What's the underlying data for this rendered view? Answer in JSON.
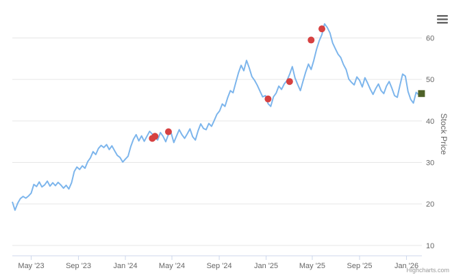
{
  "menu": {
    "icon": "hamburger-menu-icon"
  },
  "credit": "Highcharts.com",
  "colors": {
    "line": "#7cb5ec",
    "marker": "#d64141",
    "last_marker": "#4f6228",
    "grid": "#e6e6e6",
    "axis_text": "#666666"
  },
  "chart_data": {
    "type": "line",
    "ylabel": "Stock Price",
    "y_axis_side": "right",
    "ylim": [
      7.5,
      67.5
    ],
    "yticks": [
      10,
      20,
      30,
      40,
      50,
      60
    ],
    "xlim": [
      "2023-03-13",
      "2026-02-10"
    ],
    "xticks": [
      {
        "date": "2023-05-01",
        "label": "May '23"
      },
      {
        "date": "2023-09-01",
        "label": "Sep '23"
      },
      {
        "date": "2024-01-01",
        "label": "Jan '24"
      },
      {
        "date": "2024-05-01",
        "label": "May '24"
      },
      {
        "date": "2024-09-01",
        "label": "Sep '24"
      },
      {
        "date": "2025-01-01",
        "label": "Jan '25"
      },
      {
        "date": "2025-05-01",
        "label": "May '25"
      },
      {
        "date": "2025-09-01",
        "label": "Sep '25"
      },
      {
        "date": "2026-01-01",
        "label": "Jan '26"
      }
    ],
    "grid": true,
    "series": [
      {
        "x": [
          "2023-03-13",
          "2023-03-20",
          "2023-03-27",
          "2023-04-03",
          "2023-04-10",
          "2023-04-17",
          "2023-04-24",
          "2023-05-01",
          "2023-05-08",
          "2023-05-15",
          "2023-05-22",
          "2023-05-29",
          "2023-06-05",
          "2023-06-12",
          "2023-06-19",
          "2023-06-26",
          "2023-07-03",
          "2023-07-10",
          "2023-07-17",
          "2023-07-24",
          "2023-07-31",
          "2023-08-07",
          "2023-08-14",
          "2023-08-21",
          "2023-08-28",
          "2023-09-04",
          "2023-09-11",
          "2023-09-18",
          "2023-09-25",
          "2023-10-02",
          "2023-10-09",
          "2023-10-16",
          "2023-10-23",
          "2023-10-30",
          "2023-11-06",
          "2023-11-13",
          "2023-11-20",
          "2023-11-27",
          "2023-12-04",
          "2023-12-11",
          "2023-12-18",
          "2023-12-25",
          "2024-01-01",
          "2024-01-08",
          "2024-01-15",
          "2024-01-22",
          "2024-01-29",
          "2024-02-05",
          "2024-02-12",
          "2024-02-19",
          "2024-02-26",
          "2024-03-04",
          "2024-03-11",
          "2024-03-18",
          "2024-03-25",
          "2024-04-01",
          "2024-04-08",
          "2024-04-15",
          "2024-04-22",
          "2024-04-29",
          "2024-05-06",
          "2024-05-13",
          "2024-05-20",
          "2024-05-27",
          "2024-06-03",
          "2024-06-10",
          "2024-06-17",
          "2024-06-24",
          "2024-07-01",
          "2024-07-08",
          "2024-07-15",
          "2024-07-22",
          "2024-07-29",
          "2024-08-05",
          "2024-08-12",
          "2024-08-19",
          "2024-08-26",
          "2024-09-02",
          "2024-09-09",
          "2024-09-16",
          "2024-09-23",
          "2024-09-30",
          "2024-10-07",
          "2024-10-14",
          "2024-10-21",
          "2024-10-28",
          "2024-11-04",
          "2024-11-11",
          "2024-11-18",
          "2024-11-25",
          "2024-12-02",
          "2024-12-09",
          "2024-12-16",
          "2024-12-23",
          "2024-12-30",
          "2025-01-06",
          "2025-01-13",
          "2025-01-20",
          "2025-01-27",
          "2025-02-03",
          "2025-02-10",
          "2025-02-17",
          "2025-02-24",
          "2025-03-03",
          "2025-03-10",
          "2025-03-17",
          "2025-03-24",
          "2025-03-31",
          "2025-04-07",
          "2025-04-14",
          "2025-04-21",
          "2025-04-28",
          "2025-05-05",
          "2025-05-12",
          "2025-05-19",
          "2025-05-26",
          "2025-06-02",
          "2025-06-09",
          "2025-06-16",
          "2025-06-23",
          "2025-06-30",
          "2025-07-07",
          "2025-07-14",
          "2025-07-21",
          "2025-07-28",
          "2025-08-04",
          "2025-08-11",
          "2025-08-18",
          "2025-08-25",
          "2025-09-01",
          "2025-09-08",
          "2025-09-15",
          "2025-09-22",
          "2025-09-29",
          "2025-10-06",
          "2025-10-13",
          "2025-10-20",
          "2025-10-27",
          "2025-11-03",
          "2025-11-10",
          "2025-11-17",
          "2025-11-24",
          "2025-12-01",
          "2025-12-08",
          "2025-12-15",
          "2025-12-22",
          "2025-12-29",
          "2026-01-05",
          "2026-01-12",
          "2026-01-19",
          "2026-01-26",
          "2026-02-02"
        ],
        "y": [
          20.5,
          18.5,
          20.2,
          21.3,
          21.8,
          21.4,
          21.9,
          22.6,
          24.7,
          24.2,
          25.3,
          24.1,
          24.6,
          25.5,
          24.3,
          25.1,
          24.4,
          25.2,
          24.6,
          23.8,
          24.5,
          23.6,
          25.1,
          27.8,
          28.9,
          28.3,
          29.2,
          28.6,
          30.2,
          31.1,
          32.6,
          31.9,
          33.4,
          34.1,
          33.6,
          34.3,
          33.1,
          34.0,
          32.8,
          31.7,
          31.2,
          30.1,
          30.8,
          31.5,
          33.8,
          35.6,
          36.7,
          35.2,
          36.4,
          35.1,
          36.3,
          37.5,
          36.8,
          36.0,
          35.4,
          37.2,
          36.3,
          35.0,
          36.8,
          37.1,
          34.8,
          36.4,
          37.9,
          36.7,
          35.8,
          36.9,
          38.1,
          36.2,
          35.4,
          37.6,
          39.3,
          38.2,
          37.9,
          39.4,
          38.7,
          40.1,
          41.6,
          42.4,
          44.1,
          43.5,
          45.6,
          47.3,
          46.8,
          49.2,
          51.6,
          53.4,
          52.1,
          54.6,
          52.8,
          50.7,
          49.8,
          48.6,
          47.2,
          45.8,
          46.1,
          44.2,
          43.5,
          45.8,
          46.7,
          48.4,
          47.6,
          48.9,
          49.7,
          51.2,
          53.1,
          50.4,
          48.8,
          47.3,
          49.6,
          51.8,
          53.7,
          52.4,
          54.6,
          57.2,
          59.3,
          60.8,
          63.4,
          62.5,
          61.2,
          58.8,
          57.4,
          56.1,
          55.3,
          53.6,
          52.4,
          50.1,
          49.3,
          48.7,
          50.6,
          49.8,
          48.2,
          50.4,
          49.1,
          47.6,
          46.4,
          47.8,
          48.9,
          47.3,
          46.6,
          48.4,
          49.5,
          47.9,
          46.1,
          45.7,
          48.6,
          51.3,
          50.8,
          47.1,
          45.2,
          44.3,
          46.9,
          46.3
        ]
      }
    ],
    "markers": [
      {
        "x": "2024-03-11",
        "y": 35.8
      },
      {
        "x": "2024-03-18",
        "y": 36.3
      },
      {
        "x": "2024-04-22",
        "y": 37.4
      },
      {
        "x": "2025-01-06",
        "y": 45.3
      },
      {
        "x": "2025-03-03",
        "y": 49.5
      },
      {
        "x": "2025-04-28",
        "y": 59.5
      },
      {
        "x": "2025-05-26",
        "y": 62.2
      }
    ],
    "last_point": {
      "x": "2026-02-09",
      "y": 46.6
    }
  }
}
